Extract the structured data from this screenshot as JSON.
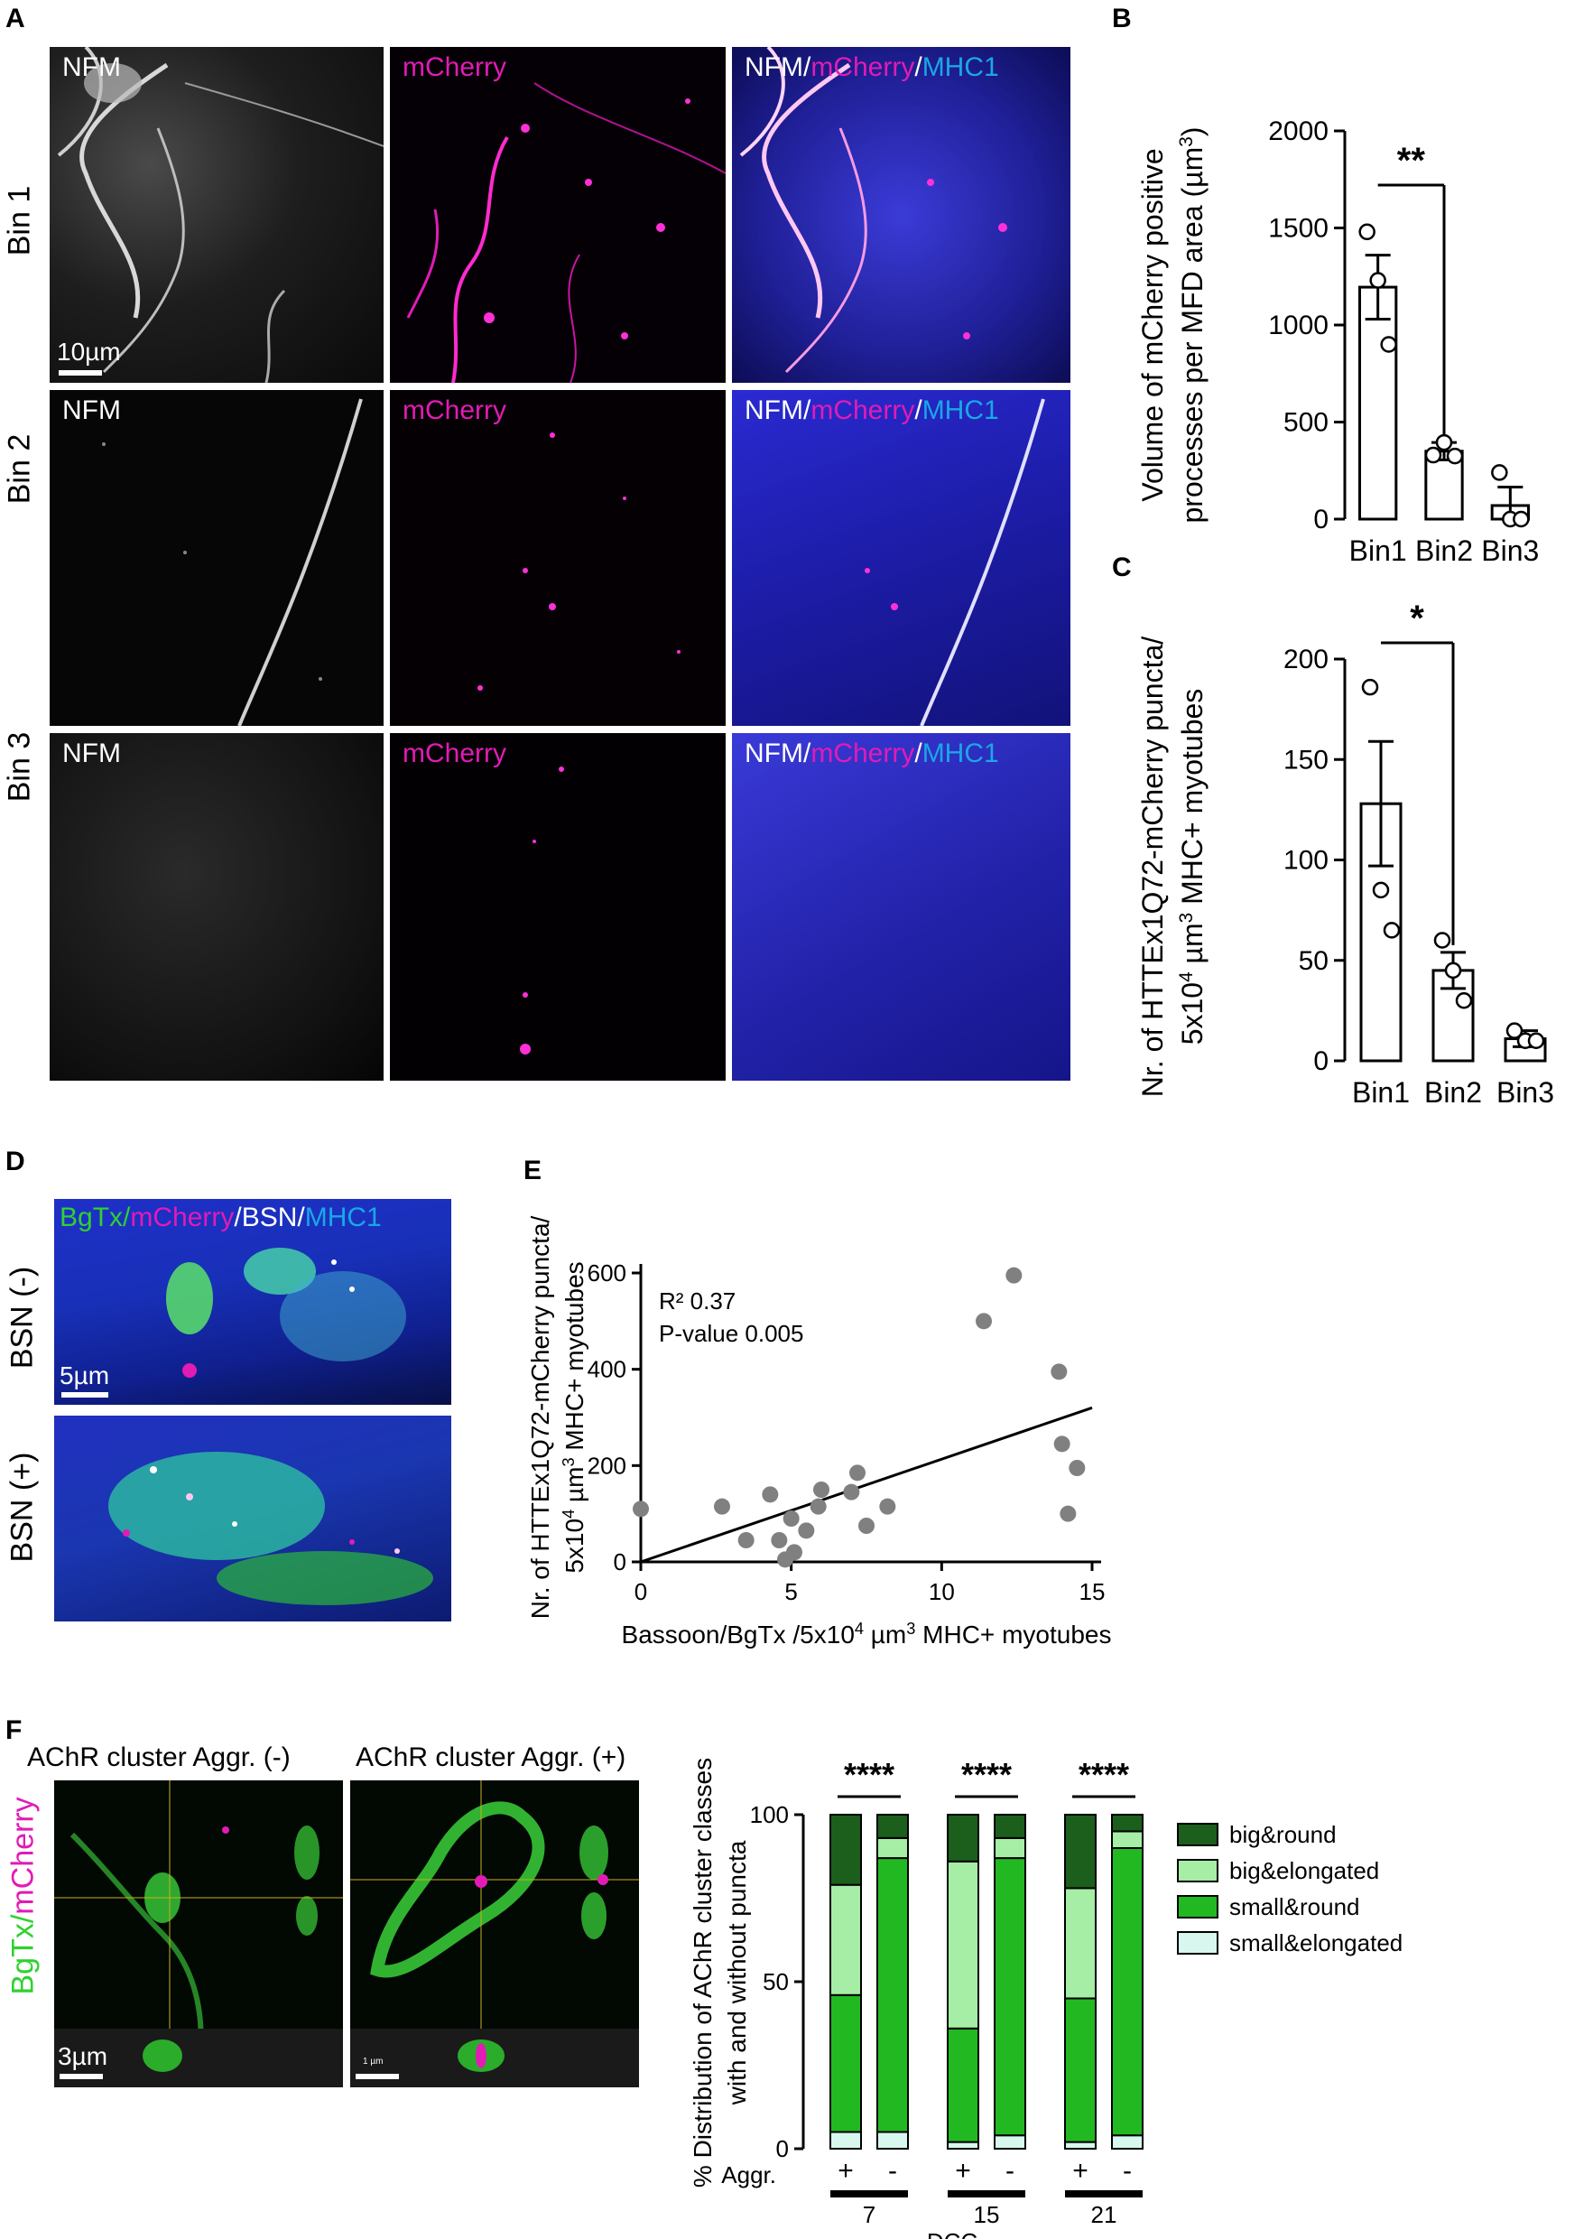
{
  "panels": {
    "A": {
      "letter": "A",
      "rows": [
        "Bin 1",
        "Bin 2",
        "Bin 3"
      ],
      "channels": {
        "nfm": "NFM",
        "mcherry": "mCherry",
        "merge_nfm": "NFM/",
        "merge_mcherry": "mCherry",
        "merge_slash": "/",
        "merge_mhc1": "MHC1"
      },
      "scalebar": "10µm"
    },
    "B": {
      "letter": "B"
    },
    "C": {
      "letter": "C"
    },
    "D": {
      "letter": "D",
      "merge_bgtx": "BgTx/",
      "merge_mcherry": "mCherry",
      "merge_bsn": "/BSN/",
      "merge_mhc1": "MHC1",
      "rows": [
        "BSN (-)",
        "BSN (+)"
      ],
      "scalebar": "5µm"
    },
    "E": {
      "letter": "E"
    },
    "F": {
      "letter": "F",
      "titles": [
        "AChR cluster Aggr. (-)",
        "AChR cluster Aggr. (+)"
      ],
      "side_bgtx": "BgTx/",
      "side_mcherry": "mCherry",
      "scalebar": "3µm",
      "scalebar_small": "1 µm"
    }
  },
  "colors": {
    "magenta": "#e21bb5",
    "cyan": "#1aa7e6",
    "green": "#2fd12f",
    "dark_green": "#1c5e1c",
    "light_green": "#a6eda6",
    "mid_green": "#22b822",
    "pale_cyan": "#d8f7ef",
    "scatter_gray": "#808080"
  },
  "chart_data": [
    {
      "id": "B",
      "type": "bar",
      "categories": [
        "Bin1",
        "Bin2",
        "Bin3"
      ],
      "values": [
        1195,
        350,
        70
      ],
      "errors": [
        165,
        45,
        95
      ],
      "points": [
        [
          1480,
          1230,
          900
        ],
        [
          330,
          395,
          325
        ],
        [
          240,
          0,
          0
        ]
      ],
      "ylabel_line1": "Volume of mCherry positive",
      "ylabel_line2": "processes per MFD area (",
      "ylabel_unit": "µm",
      "ylabel_exp": "3",
      "ylabel_close": ")",
      "ylim": [
        0,
        2000
      ],
      "yticks": [
        "0",
        "500",
        "1000",
        "1500",
        "2000"
      ],
      "significance": "**"
    },
    {
      "id": "C",
      "type": "bar",
      "categories": [
        "Bin1",
        "Bin2",
        "Bin3"
      ],
      "values": [
        128,
        45,
        11
      ],
      "errors": [
        31,
        9,
        4
      ],
      "points": [
        [
          186,
          85,
          65
        ],
        [
          60,
          45,
          30
        ],
        [
          15,
          10,
          10
        ]
      ],
      "ylabel_line1": "Nr. of HTTEx1Q72-mCherry puncta/",
      "ylabel_line2_pre": "5x10",
      "ylabel_line2_exp": "4",
      "ylabel_line2_unit": " µm",
      "ylabel_line2_exp2": "3",
      "ylabel_line2_post": " MHC+ myotubes",
      "ylim": [
        0,
        200
      ],
      "yticks": [
        "0",
        "50",
        "100",
        "150",
        "200"
      ],
      "significance": "*"
    },
    {
      "id": "E",
      "type": "scatter",
      "x": [
        0,
        2.7,
        3.5,
        4.3,
        4.6,
        4.8,
        5,
        5.1,
        5.5,
        5.9,
        6,
        7,
        7.2,
        7.5,
        8.2,
        11.4,
        12.4,
        13.9,
        14,
        14.2,
        14.5
      ],
      "y": [
        110,
        115,
        45,
        140,
        45,
        5,
        90,
        20,
        65,
        115,
        150,
        145,
        185,
        75,
        115,
        500,
        595,
        395,
        245,
        100,
        195
      ],
      "fit": {
        "x": [
          0,
          15
        ],
        "y": [
          0,
          320
        ]
      },
      "annot_r2": "R² 0.37",
      "annot_p": "P-value 0.005",
      "xlabel_pre": "Bassoon/BgTx /5x10",
      "xlabel_exp": "4",
      "xlabel_unit": " µm",
      "xlabel_exp2": "3",
      "xlabel_post": " MHC+ myotubes",
      "ylabel_line1": "Nr. of HTTEx1Q72-mCherry puncta/",
      "ylabel_line2_pre": "5x10",
      "ylabel_line2_exp": "4",
      "ylabel_line2_unit": " µm",
      "ylabel_line2_exp2": "3",
      "ylabel_line2_post": " MHC+ myotubes",
      "xlim": [
        0,
        15
      ],
      "ylim": [
        0,
        600
      ],
      "xticks": [
        "0",
        "5",
        "10",
        "15"
      ],
      "yticks": [
        "0",
        "200",
        "400",
        "600"
      ]
    },
    {
      "id": "F",
      "type": "bar",
      "stacked": true,
      "groups": [
        "7",
        "15",
        "21"
      ],
      "aggr_label": "Aggr.",
      "bars": [
        "+",
        "-",
        "+",
        "-",
        "+",
        "-"
      ],
      "xlabel": "DCC",
      "ylabel_line1": "% Distribution of AChR cluster classes",
      "ylabel_line2": "with and without puncta",
      "ylim": [
        0,
        100
      ],
      "yticks": [
        "0",
        "50",
        "100"
      ],
      "significance": [
        "****",
        "****",
        "****"
      ],
      "series": [
        {
          "name": "small&elongated",
          "values": [
            5,
            5,
            2,
            4,
            2,
            4
          ]
        },
        {
          "name": "small&round",
          "values": [
            41,
            82,
            34,
            83,
            43,
            86
          ]
        },
        {
          "name": "big&elongated",
          "values": [
            33,
            6,
            50,
            6,
            33,
            5
          ]
        },
        {
          "name": "big&round",
          "values": [
            21,
            7,
            14,
            7,
            22,
            5
          ]
        }
      ],
      "legend_order": [
        "big&round",
        "big&elongated",
        "small&round",
        "small&elongated"
      ]
    }
  ]
}
